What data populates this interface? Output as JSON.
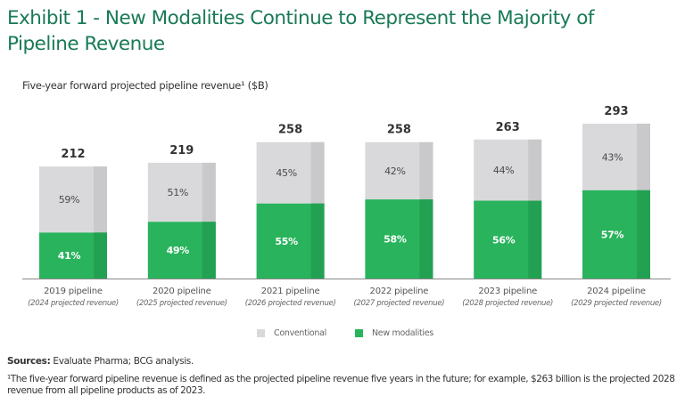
{
  "title": "Exhibit 1 - New Modalities Continue to Represent the Majority of Pipeline Revenue",
  "subtitle": "Five-year forward projected pipeline revenue¹ ($B)",
  "colors": {
    "title": "#197a56",
    "conventional": "#d9d9db",
    "conventional_shade": "#c9c9cb",
    "new_modalities": "#29b35c",
    "new_modalities_shade": "#23a152",
    "axis": "#888888"
  },
  "legend": {
    "items": [
      {
        "label": "Conventional",
        "key": "conventional"
      },
      {
        "label": "New modalities",
        "key": "new_modalities"
      }
    ]
  },
  "sources": {
    "label": "Sources:",
    "text": " Evaluate Pharma; BCG analysis."
  },
  "footnote": "¹The five-year forward pipeline revenue is defined as the projected pipeline revenue five years in the future; for example, $263 billion is the projected 2028 revenue from all pipeline products as of 2023.",
  "chart_data": {
    "type": "bar",
    "stacked": true,
    "title": "Exhibit 1 - New Modalities Continue to Represent the Majority of Pipeline Revenue",
    "ylabel": "Five-year forward projected pipeline revenue ($B)",
    "xlabel": "",
    "ylim": [
      0,
      300
    ],
    "grid": false,
    "legend_position": "bottom",
    "categories": [
      "2019 pipeline",
      "2020 pipeline",
      "2021 pipeline",
      "2022 pipeline",
      "2023 pipeline",
      "2024 pipeline"
    ],
    "category_sublabels": [
      "(2024 projected revenue)",
      "(2025 projected revenue)",
      "(2026 projected revenue)",
      "(2027 projected revenue)",
      "(2028 projected revenue)",
      "(2029 projected revenue)"
    ],
    "totals": [
      212,
      219,
      258,
      258,
      263,
      293
    ],
    "series": [
      {
        "name": "New modalities",
        "percent_values": [
          41,
          49,
          55,
          58,
          56,
          57
        ]
      },
      {
        "name": "Conventional",
        "percent_values": [
          59,
          51,
          45,
          42,
          44,
          43
        ]
      }
    ]
  }
}
